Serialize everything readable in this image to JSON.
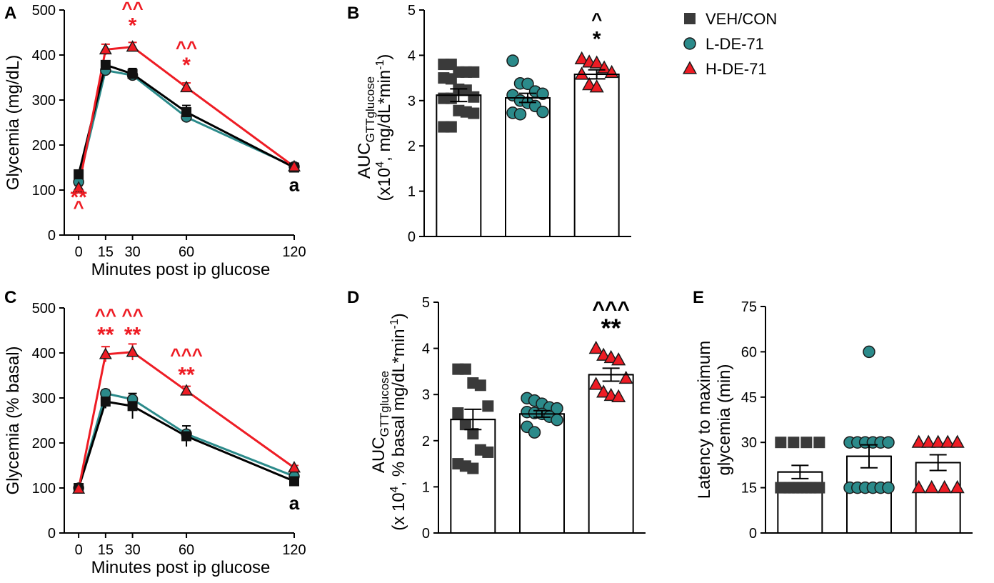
{
  "colors": {
    "veh": "#3a3a3a",
    "l": "#2b8a8a",
    "h": "#ee1c24",
    "axis": "#000000",
    "black": "#000000"
  },
  "legend": [
    {
      "label": "VEH/CON",
      "marker": "square",
      "color": "#3a3a3a"
    },
    {
      "label": "L-DE-71",
      "marker": "circle",
      "color": "#2b8a8a"
    },
    {
      "label": "H-DE-71",
      "marker": "triangle",
      "color": "#ee1c24"
    }
  ],
  "chart_data": [
    {
      "panel": "A",
      "type": "line",
      "xlabel": "Minutes post ip glucose",
      "ylabel": "Glycemia (mg/dL)",
      "x": [
        0,
        15,
        30,
        60,
        120
      ],
      "xlim": [
        -8,
        120
      ],
      "ylim": [
        0,
        500
      ],
      "xticks": [
        0,
        15,
        30,
        60,
        120
      ],
      "yticks": [
        0,
        100,
        200,
        300,
        400,
        500
      ],
      "series": [
        {
          "name": "VEH/CON",
          "values": [
            135,
            378,
            358,
            273,
            150
          ],
          "err": [
            6,
            8,
            12,
            15,
            8
          ]
        },
        {
          "name": "L-DE-71",
          "values": [
            118,
            366,
            355,
            262,
            152
          ],
          "err": [
            5,
            8,
            6,
            6,
            6
          ]
        },
        {
          "name": "H-DE-71",
          "values": [
            105,
            412,
            418,
            328,
            152
          ],
          "err": [
            5,
            12,
            10,
            10,
            6
          ]
        }
      ],
      "annotations": [
        {
          "text": "**",
          "x": 0,
          "y": 68,
          "color": "h",
          "size": 30
        },
        {
          "text": "^",
          "x": 0,
          "y": 48,
          "color": "h",
          "size": 26
        },
        {
          "text": "^^",
          "x": 30,
          "y": 490,
          "color": "h",
          "size": 26
        },
        {
          "text": "*",
          "x": 30,
          "y": 450,
          "color": "h",
          "size": 30
        },
        {
          "text": "^^",
          "x": 60,
          "y": 402,
          "color": "h",
          "size": 26
        },
        {
          "text": "*",
          "x": 60,
          "y": 362,
          "color": "h",
          "size": 30
        },
        {
          "text": "a",
          "x": 120,
          "y": 98,
          "color": "black",
          "size": 26
        }
      ]
    },
    {
      "panel": "B",
      "type": "bar",
      "ylabel_main": "AUC",
      "ylabel_sub": "GTTglucose",
      "ylabel_line2_pre": "(x10",
      "ylabel_line2_sup": "4",
      "ylabel_line2_mid": ", mg/dL*min",
      "ylabel_line2_sup2": "-1",
      "ylabel_line2_post": ")",
      "categories": [
        "VEH/CON",
        "L-DE-71",
        "H-DE-71"
      ],
      "values": [
        3.12,
        3.06,
        3.58
      ],
      "err": [
        0.14,
        0.1,
        0.1
      ],
      "ylim": [
        0,
        5
      ],
      "yticks": [
        0,
        1,
        2,
        3,
        4,
        5
      ],
      "points": [
        [
          3.8,
          3.8,
          3.63,
          3.63,
          3.63,
          3.5,
          3.48,
          3.25,
          3.23,
          3.08,
          3.05,
          3.05,
          2.78,
          2.75,
          2.72,
          2.42,
          2.42
        ],
        [
          3.88,
          3.38,
          3.37,
          3.2,
          3.15,
          3.12,
          3.0,
          2.95,
          2.88,
          2.75,
          2.73,
          2.7
        ],
        [
          3.92,
          3.85,
          3.83,
          3.72,
          3.62,
          3.58,
          3.35,
          3.3
        ]
      ],
      "annotations": [
        {
          "text": "^",
          "x": 2,
          "y": 4.65,
          "color": "black",
          "size": 26
        },
        {
          "text": "*",
          "x": 2,
          "y": 4.2,
          "color": "black",
          "size": 30
        }
      ]
    },
    {
      "panel": "C",
      "type": "line",
      "xlabel": "Minutes post ip glucose",
      "ylabel": "Glycemia (% basal)",
      "x": [
        0,
        15,
        30,
        60,
        120
      ],
      "xlim": [
        -8,
        120
      ],
      "ylim": [
        0,
        500
      ],
      "xticks": [
        0,
        15,
        30,
        60,
        120
      ],
      "yticks": [
        0,
        100,
        200,
        300,
        400,
        500
      ],
      "series": [
        {
          "name": "VEH/CON",
          "values": [
            100,
            292,
            282,
            215,
            115
          ],
          "err": [
            3,
            15,
            28,
            23,
            8
          ]
        },
        {
          "name": "L-DE-71",
          "values": [
            100,
            310,
            297,
            220,
            126
          ],
          "err": [
            3,
            8,
            5,
            8,
            5
          ]
        },
        {
          "name": "H-DE-71",
          "values": [
            98,
            397,
            402,
            316,
            145
          ],
          "err": [
            3,
            17,
            18,
            10,
            5
          ]
        }
      ],
      "annotations": [
        {
          "text": "^^",
          "x": 15,
          "y": 470,
          "color": "h",
          "size": 26
        },
        {
          "text": "**",
          "x": 15,
          "y": 425,
          "color": "h",
          "size": 30
        },
        {
          "text": "^^",
          "x": 30,
          "y": 470,
          "color": "h",
          "size": 26
        },
        {
          "text": "**",
          "x": 30,
          "y": 425,
          "color": "h",
          "size": 30
        },
        {
          "text": "^^^",
          "x": 60,
          "y": 382,
          "color": "h",
          "size": 26
        },
        {
          "text": "**",
          "x": 60,
          "y": 336,
          "color": "h",
          "size": 30
        },
        {
          "text": "a",
          "x": 120,
          "y": 52,
          "color": "black",
          "size": 26
        }
      ]
    },
    {
      "panel": "D",
      "type": "bar",
      "ylabel_main": "AUC",
      "ylabel_sub": "GTTglucose",
      "ylabel_line2_pre": "(x 10",
      "ylabel_line2_sup": "4",
      "ylabel_line2_mid": ", % basal mg/dL*min",
      "ylabel_line2_sup2": "-1",
      "ylabel_line2_post": ")",
      "categories": [
        "VEH/CON",
        "L-DE-71",
        "H-DE-71"
      ],
      "values": [
        2.46,
        2.58,
        3.43
      ],
      "err": [
        0.22,
        0.07,
        0.14
      ],
      "ylim": [
        0,
        5
      ],
      "yticks": [
        0,
        1,
        2,
        3,
        4,
        5
      ],
      "points": [
        [
          3.55,
          3.55,
          3.25,
          3.2,
          2.75,
          2.6,
          2.35,
          2.15,
          1.8,
          1.75,
          1.5,
          1.45,
          1.4
        ],
        [
          2.92,
          2.87,
          2.8,
          2.72,
          2.7,
          2.62,
          2.6,
          2.58,
          2.52,
          2.45,
          2.3,
          2.18
        ],
        [
          4.0,
          3.85,
          3.8,
          3.75,
          3.35,
          3.22,
          3.05,
          2.98,
          2.95
        ]
      ],
      "annotations": [
        {
          "text": "^^^",
          "x": 2,
          "y": 4.7,
          "color": "black",
          "size": 30
        },
        {
          "text": "**",
          "x": 2,
          "y": 4.25,
          "color": "black",
          "size": 36
        }
      ]
    },
    {
      "panel": "E",
      "type": "bar",
      "ylabel_line1": "Latency to maximum",
      "ylabel_line2": "glycemia  (min)",
      "categories": [
        "VEH/CON",
        "L-DE-71",
        "H-DE-71"
      ],
      "values": [
        20.2,
        25.4,
        23.3
      ],
      "err": [
        2.2,
        3.8,
        2.6
      ],
      "ylim": [
        0,
        75
      ],
      "yticks": [
        0,
        15,
        30,
        45,
        60,
        75
      ],
      "points": [
        [
          30,
          30,
          30,
          30,
          15,
          15,
          15,
          15,
          15,
          15,
          15,
          15,
          15,
          15
        ],
        [
          60,
          30,
          30,
          30,
          30,
          30,
          30,
          15,
          15,
          15,
          15,
          15,
          15
        ],
        [
          30,
          30,
          30,
          30,
          30,
          15,
          15,
          15,
          15
        ]
      ],
      "annotations": []
    }
  ]
}
